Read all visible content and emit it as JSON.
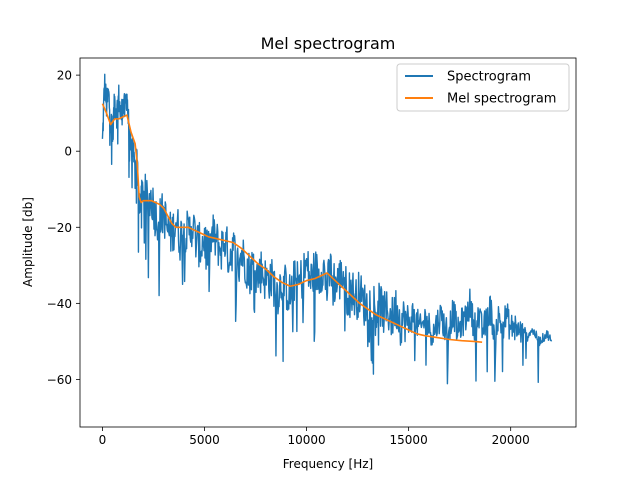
{
  "chart_data": {
    "type": "line",
    "title": "Mel spectrogram",
    "xlabel": "Frequency [Hz]",
    "ylabel": "Amplitude [db]",
    "xlim": [
      -1100,
      23200
    ],
    "ylim": [
      -72.5,
      24.5
    ],
    "xticks": [
      0,
      5000,
      10000,
      15000,
      20000
    ],
    "xtick_labels": [
      "0",
      "5000",
      "10000",
      "15000",
      "20000"
    ],
    "yticks": [
      20,
      0,
      -20,
      -40,
      -60
    ],
    "ytick_labels": [
      "20",
      "0",
      "−20",
      "−40",
      "−60"
    ],
    "grid": false,
    "legend": {
      "placement": "top-right",
      "entries": [
        "Spectrogram",
        "Mel spectrogram"
      ]
    },
    "series": [
      {
        "name": "Spectrogram",
        "color": "#1f77b4",
        "style": "noisy-line",
        "x": [
          0,
          100,
          200,
          300,
          400,
          500,
          600,
          700,
          800,
          900,
          1000,
          1100,
          1200,
          1300,
          1400,
          1500,
          1600,
          1700,
          1800,
          1900,
          2000,
          2200,
          2400,
          2600,
          2800,
          3000,
          3200,
          3400,
          3600,
          3800,
          4000,
          4200,
          4400,
          4600,
          4800,
          5000,
          5200,
          5400,
          5600,
          5800,
          6000,
          6200,
          6400,
          6600,
          6800,
          7000,
          7200,
          7400,
          7600,
          7800,
          8000,
          8200,
          8400,
          8600,
          8800,
          9000,
          9200,
          9400,
          9600,
          9800,
          10000,
          10200,
          10400,
          10600,
          10800,
          11000,
          11200,
          11400,
          11600,
          11800,
          12000,
          12200,
          12400,
          12600,
          12800,
          13000,
          13200,
          13400,
          13600,
          13800,
          14000,
          14200,
          14400,
          14600,
          14800,
          15000,
          15200,
          15400,
          15600,
          15800,
          16000,
          16200,
          16400,
          16600,
          16800,
          17000,
          17200,
          17400,
          17600,
          17800,
          18000,
          18200,
          18400,
          18600,
          18800,
          19000,
          19200,
          19400,
          19600,
          19800,
          20000,
          20200,
          20400,
          20600,
          20800,
          21000,
          21200,
          21400,
          21600,
          21800,
          22000
        ],
        "y": [
          2,
          18,
          12,
          15,
          8,
          5,
          13,
          10,
          14,
          9,
          12,
          11,
          15,
          5,
          0,
          2,
          -7,
          0,
          -16,
          -12,
          -10,
          -14,
          -12,
          -17,
          -18,
          -16,
          -21,
          -22,
          -18,
          -23,
          -20,
          -22,
          -19,
          -24,
          -25,
          -23,
          -27,
          -22,
          -24,
          -26,
          -23,
          -28,
          -25,
          -30,
          -27,
          -29,
          -32,
          -30,
          -33,
          -31,
          -34,
          -33,
          -35,
          -37,
          -34,
          -36,
          -38,
          -34,
          -35,
          -33,
          -30,
          -34,
          -31,
          -33,
          -30,
          -36,
          -31,
          -35,
          -34,
          -32,
          -38,
          -36,
          -39,
          -37,
          -40,
          -41,
          -38,
          -42,
          -40,
          -43,
          -42,
          -44,
          -41,
          -45,
          -44,
          -46,
          -43,
          -45,
          -47,
          -44,
          -46,
          -48,
          -45,
          -43,
          -47,
          -46,
          -42,
          -48,
          -45,
          -44,
          -40,
          -46,
          -43,
          -47,
          -45,
          -41,
          -48,
          -44,
          -46,
          -43,
          -47,
          -45,
          -48,
          -46,
          -49,
          -47,
          -48,
          -50,
          -49,
          -48,
          -50
        ]
      },
      {
        "name": "Mel spectrogram",
        "color": "#ff7f0e",
        "style": "line",
        "x": [
          0,
          200,
          400,
          600,
          800,
          1000,
          1200,
          1400,
          1600,
          1700,
          1800,
          1900,
          2000,
          2200,
          2400,
          2600,
          2800,
          3000,
          3200,
          3400,
          3600,
          3800,
          4000,
          4200,
          4400,
          4800,
          5200,
          5600,
          6000,
          6400,
          6800,
          7200,
          7600,
          8000,
          8400,
          8800,
          9200,
          9600,
          10000,
          10400,
          10800,
          11000,
          11400,
          11800,
          12200,
          12600,
          13000,
          13400,
          13800,
          14200,
          14600,
          15000,
          15400,
          15800,
          16400,
          17000,
          17600,
          18200,
          18600
        ],
        "y": [
          12.5,
          10,
          7,
          8.5,
          8.5,
          9,
          9.5,
          5,
          2,
          -3,
          -12,
          -13.5,
          -13,
          -13,
          -13,
          -13.5,
          -14,
          -15,
          -17,
          -19,
          -20,
          -20,
          -20,
          -20,
          -20.5,
          -21.5,
          -22.5,
          -23,
          -23.5,
          -24,
          -25.5,
          -27.5,
          -29.5,
          -31,
          -33,
          -34.5,
          -35.5,
          -35,
          -34,
          -33.5,
          -32.5,
          -32,
          -34,
          -36,
          -38,
          -40,
          -41.5,
          -43,
          -44,
          -45,
          -46,
          -47,
          -48,
          -48.5,
          -49,
          -49.5,
          -49.8,
          -50,
          -50.2
        ]
      }
    ]
  }
}
